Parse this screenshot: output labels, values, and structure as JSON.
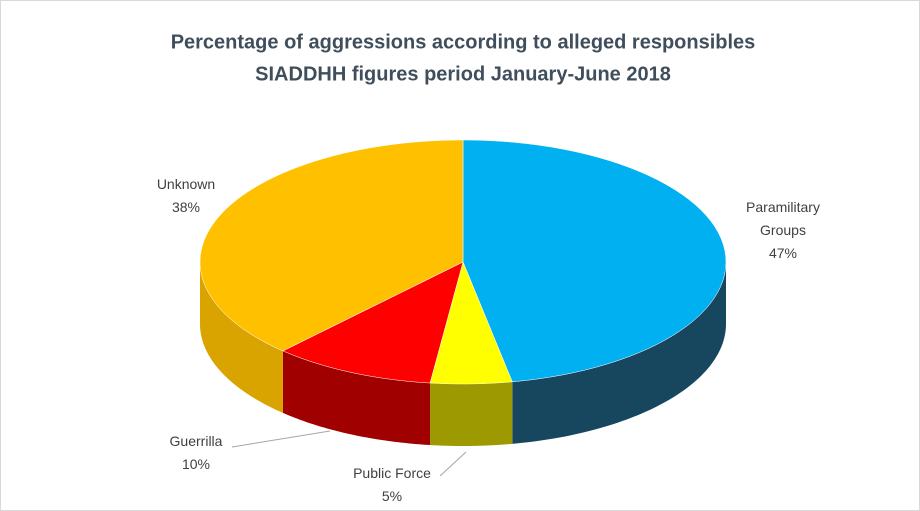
{
  "chart_data": {
    "type": "pie",
    "title": "Percentage of aggressions according to alleged responsibles",
    "subtitle": "SIADDHH figures period January-June 2018",
    "categories": [
      "Paramilitary Groups",
      "Public Force",
      "Guerrilla",
      "Unknown"
    ],
    "values": [
      47,
      5,
      10,
      38
    ],
    "value_labels": [
      "47%",
      "5%",
      "10%",
      "38%"
    ],
    "colors": [
      "#00b0f0",
      "#ffff00",
      "#ff0000",
      "#ffc000"
    ],
    "side_colors": [
      "#17475f",
      "#9c9a00",
      "#a00000",
      "#d9a300"
    ],
    "three_d": true
  }
}
